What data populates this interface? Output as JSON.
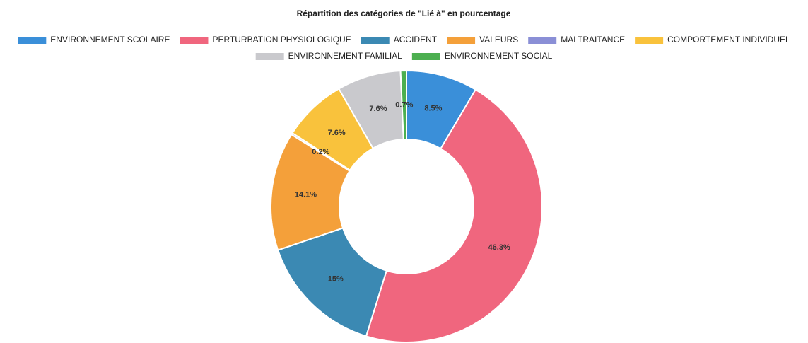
{
  "chart_data": {
    "type": "doughnut",
    "title": "Répartition des catégories de \"Lié à\" en pourcentage",
    "categories": [
      "ENVIRONNEMENT SCOLAIRE",
      "PERTURBATION PHYSIOLOGIQUE",
      "ACCIDENT",
      "VALEURS",
      "MALTRAITANCE",
      "COMPORTEMENT INDIVIDUEL",
      "ENVIRONNEMENT FAMILIAL",
      "ENVIRONNEMENT SOCIAL"
    ],
    "values": [
      8.5,
      46.3,
      15,
      14.1,
      0.2,
      7.6,
      7.6,
      0.7
    ],
    "value_labels": [
      "8.5%",
      "46.3%",
      "15%",
      "14.1%",
      "0.2%",
      "7.6%",
      "7.6%",
      "0.7%"
    ],
    "colors": [
      "#3a8fd9",
      "#f0667e",
      "#3b89b3",
      "#f4a03a",
      "#8a8fd6",
      "#f9c23c",
      "#c9c9cd",
      "#4caf50"
    ],
    "legend": "top"
  }
}
